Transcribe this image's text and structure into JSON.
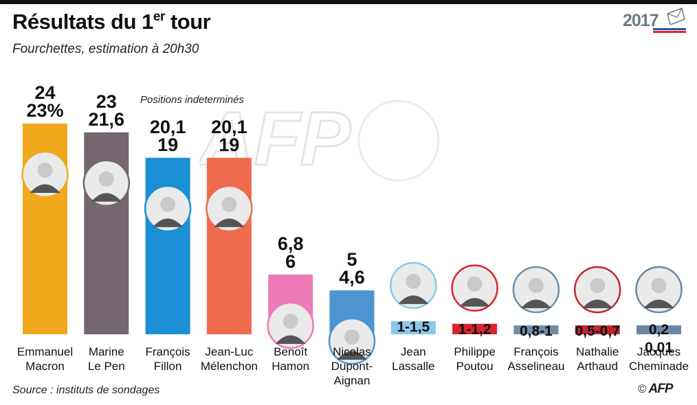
{
  "header": {
    "title_main": "Résultats du 1",
    "title_sup": "er",
    "title_end": " tour",
    "subtitle": "Fourchettes, estimation à 20h30",
    "year": "2017",
    "note": "Positions indeterminés"
  },
  "footer": {
    "source": "Source : instituts de sondages",
    "copyright": "©",
    "agency": "AFP"
  },
  "chart_data": {
    "type": "bar",
    "title": "Résultats du 1er tour",
    "subtitle": "Fourchettes, estimation à 20h30",
    "ylim": [
      0,
      24
    ],
    "grid": false,
    "candidates": [
      {
        "first": "Emmanuel",
        "last": "Macron",
        "high": 24,
        "low": 23,
        "label_lines": [
          "24",
          "23%"
        ],
        "color": "#f0a91b"
      },
      {
        "first": "Marine",
        "last": "Le Pen",
        "high": 23,
        "low": 21.6,
        "label_lines": [
          "23",
          "21,6"
        ],
        "color": "#75676f"
      },
      {
        "first": "François",
        "last": "Fillon",
        "high": 20.1,
        "low": 19,
        "label_lines": [
          "20,1",
          "19"
        ],
        "color": "#1a8fd6"
      },
      {
        "first": "Jean-Luc",
        "last": "Mélenchon",
        "high": 20.1,
        "low": 19,
        "label_lines": [
          "20,1",
          "19"
        ],
        "color": "#ef6b4d"
      },
      {
        "first": "Benoît",
        "last": "Hamon",
        "high": 6.8,
        "low": 6,
        "label_lines": [
          "6,8",
          "6"
        ],
        "color": "#ee7ab6"
      },
      {
        "first": "Nicolas",
        "last": "Dupont-Aignan",
        "high": 5,
        "low": 4.6,
        "label_lines": [
          "5",
          "4,6"
        ],
        "color": "#4d95d0"
      },
      {
        "first": "Jean",
        "last": "Lassalle",
        "high": 1.5,
        "low": 1,
        "label_lines": [
          "1-1,5"
        ],
        "color": "#8bc7ea"
      },
      {
        "first": "Philippe",
        "last": "Poutou",
        "high": 1.2,
        "low": 1,
        "label_lines": [
          "1-1,2"
        ],
        "color": "#d9232f"
      },
      {
        "first": "François",
        "last": "Asselineau",
        "high": 1,
        "low": 0.8,
        "label_lines": [
          "0,8-1"
        ],
        "color": "#6f8fa6"
      },
      {
        "first": "Nathalie",
        "last": "Arthaud",
        "high": 0.7,
        "low": 0.5,
        "label_lines": [
          "0,5-0,7"
        ],
        "color": "#c0272d"
      },
      {
        "first": "Jacques",
        "last": "Cheminade",
        "high": 0.2,
        "low": 0.01,
        "label_lines": [
          "0,2",
          "0,01"
        ],
        "color": "#6a88a6"
      }
    ]
  }
}
